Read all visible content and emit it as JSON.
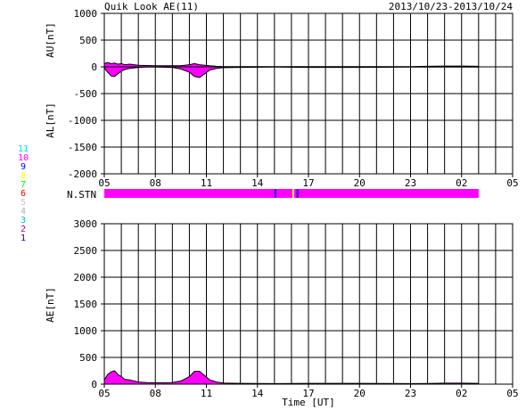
{
  "chart_data": {
    "type": "area",
    "title": "Quik Look AE(11)",
    "date_range": "2013/10/23-2013/10/24",
    "xlabel": "Time [UT]",
    "x_ticks": [
      "05",
      "08",
      "11",
      "14",
      "17",
      "20",
      "23",
      "02",
      "05"
    ],
    "x_range_hours": [
      5,
      29
    ],
    "fill_color": "#ff00ff",
    "grid": true,
    "panels": {
      "au_al": {
        "ylabel_au": "AU[nT]",
        "ylabel_al": "AL[nT]",
        "ylim": [
          -2000,
          1000
        ],
        "y_ticks": [
          "1000",
          "500",
          "0",
          "-500",
          "-1000",
          "-1500",
          "-2000"
        ],
        "y_tick_values": [
          1000,
          500,
          0,
          -500,
          -1000,
          -1500,
          -2000
        ],
        "au": {
          "x": [
            5.0,
            5.2,
            5.4,
            5.6,
            5.8,
            6.0,
            6.2,
            6.5,
            7.0,
            7.5,
            8.0,
            9.0,
            9.5,
            10.0,
            10.3,
            10.6,
            10.9,
            11.2,
            11.6,
            12.0,
            13.0,
            15.0,
            17.0,
            20.0,
            23.0,
            24.0,
            25.0,
            26.0,
            27.0
          ],
          "y": [
            60,
            80,
            60,
            70,
            50,
            60,
            40,
            50,
            30,
            25,
            20,
            20,
            20,
            40,
            60,
            40,
            30,
            20,
            10,
            5,
            5,
            5,
            5,
            5,
            5,
            10,
            15,
            15,
            10
          ]
        },
        "al": {
          "x": [
            5.0,
            5.2,
            5.4,
            5.6,
            5.8,
            6.0,
            6.2,
            6.5,
            7.0,
            7.5,
            8.0,
            9.0,
            9.5,
            10.0,
            10.3,
            10.6,
            10.9,
            11.2,
            11.6,
            12.0,
            13.0,
            15.0,
            17.0,
            20.0,
            23.0,
            24.0,
            25.0,
            26.0,
            27.0
          ],
          "y": [
            -20,
            -100,
            -170,
            -180,
            -130,
            -80,
            -50,
            -30,
            -10,
            -5,
            -5,
            -10,
            -40,
            -100,
            -180,
            -200,
            -130,
            -60,
            -30,
            -15,
            -10,
            -5,
            -10,
            -10,
            -5,
            -3,
            -3,
            -3,
            -5
          ]
        }
      },
      "nstn": {
        "label": "N.STN",
        "data_end_hour": 27,
        "stations_full": 10,
        "drops": [
          {
            "x": 15.0,
            "stations": 9
          },
          {
            "x": 16.05,
            "stations": 8
          },
          {
            "x": 16.3,
            "stations": 9
          }
        ]
      },
      "ae": {
        "ylabel": "AE[nT]",
        "ylim": [
          0,
          3000
        ],
        "y_ticks": [
          "3000",
          "2500",
          "2000",
          "1500",
          "1000",
          "500",
          "0"
        ],
        "y_tick_values": [
          3000,
          2500,
          2000,
          1500,
          1000,
          500,
          0
        ],
        "x": [
          5.0,
          5.2,
          5.4,
          5.6,
          5.8,
          6.0,
          6.2,
          6.5,
          7.0,
          7.5,
          8.0,
          9.0,
          9.5,
          10.0,
          10.3,
          10.6,
          10.9,
          11.2,
          11.6,
          12.0,
          13.0,
          15.0,
          17.0,
          20.0,
          23.0,
          24.0,
          25.0,
          26.0,
          27.0
        ],
        "y": [
          80,
          180,
          230,
          250,
          180,
          140,
          90,
          80,
          40,
          30,
          25,
          30,
          60,
          140,
          240,
          240,
          160,
          80,
          40,
          20,
          15,
          10,
          15,
          15,
          10,
          13,
          18,
          18,
          15
        ]
      }
    },
    "station_legend": [
      {
        "label": "11",
        "color": "#00e0e0"
      },
      {
        "label": "10",
        "color": "#ff00ff"
      },
      {
        "label": "9",
        "color": "#0000ff"
      },
      {
        "label": "8",
        "color": "#ffff00"
      },
      {
        "label": "7",
        "color": "#00ff00"
      },
      {
        "label": "6",
        "color": "#ff0000"
      },
      {
        "label": "5",
        "color": "#c8c8c8"
      },
      {
        "label": "4",
        "color": "#b0b0b0"
      },
      {
        "label": "3",
        "color": "#00c0c0"
      },
      {
        "label": "2",
        "color": "#c00080"
      },
      {
        "label": "1",
        "color": "#0000a0"
      }
    ]
  }
}
